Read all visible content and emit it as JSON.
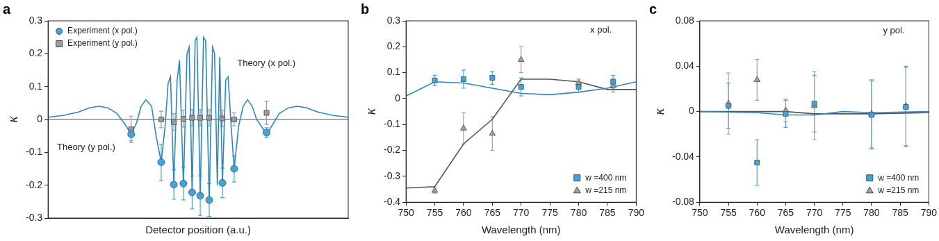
{
  "chart_data": [
    {
      "type": "scatter",
      "title": "a",
      "x_label": "Detector position (a.u.)",
      "y_label": "κ",
      "xlim": [
        0,
        100
      ],
      "ylim": [
        -0.3,
        0.3
      ],
      "yticks": [
        -0.3,
        -0.2,
        -0.1,
        0,
        0.1,
        0.2,
        0.3
      ],
      "tick_labels": "y",
      "grid": false,
      "legend": "upper left",
      "annotations": [
        {
          "text": "Theory (x pol.)",
          "x": 63,
          "y": 0.17
        },
        {
          "text": "Theory (y pol.)",
          "x": 3,
          "y": -0.085
        }
      ],
      "series": [
        {
          "type": "line",
          "line_style": "solid",
          "color": "#2b87c8",
          "x": [
            0,
            5,
            10,
            14,
            17,
            20,
            23,
            26,
            27.7,
            29.5,
            31,
            32.6,
            34.5,
            36,
            37.7,
            39,
            40,
            40.8,
            41.9,
            43,
            43.8,
            45.1,
            46.3,
            47,
            48,
            49,
            49.6,
            50.7,
            51.8,
            52.5,
            53.7,
            54.8,
            55.5,
            56.4,
            57.2,
            58.1,
            59.2,
            60,
            61,
            62,
            63.5,
            65,
            66.5,
            68,
            69.5,
            71,
            72.8,
            74.5,
            77,
            80,
            83,
            86,
            90,
            95,
            100
          ],
          "values": [
            0.007,
            0.012,
            0.022,
            0.036,
            0.04,
            0.035,
            0.018,
            -0.02,
            -0.045,
            -0.01,
            0.04,
            0.06,
            0.04,
            -0.05,
            -0.13,
            -0.02,
            0.11,
            0.13,
            -0.2,
            0.12,
            0.18,
            -0.2,
            0.2,
            0.22,
            -0.22,
            0.24,
            0.25,
            -0.235,
            0.25,
            0.24,
            -0.25,
            0.22,
            0.2,
            -0.2,
            0.19,
            -0.19,
            0.12,
            0.13,
            -0.02,
            -0.15,
            -0.02,
            0.04,
            0.06,
            0.04,
            0,
            -0.02,
            -0.045,
            -0.02,
            0.018,
            0.035,
            0.04,
            0.036,
            0.022,
            0.012,
            0.007
          ]
        },
        {
          "type": "line",
          "line_style": "solid",
          "color": "#8a8a8a",
          "x": [
            0,
            100
          ],
          "values": [
            0,
            0
          ]
        },
        {
          "name": "Experiment (x pol.)",
          "type": "scatter",
          "marker": "circle",
          "color": "#3aa8df",
          "x": [
            27.7,
            37.7,
            41.9,
            45.1,
            48,
            50.7,
            53.7,
            58.1,
            62,
            72.8
          ],
          "values": [
            -0.045,
            -0.13,
            -0.198,
            -0.195,
            -0.222,
            -0.232,
            -0.245,
            -0.193,
            -0.15,
            -0.04
          ],
          "errors": [
            0.02,
            0.055,
            0.045,
            0.05,
            0.05,
            0.06,
            0.05,
            0.045,
            0.04,
            0.015
          ]
        },
        {
          "name": "Experiment (y pol.)",
          "type": "scatter",
          "marker": "square",
          "color": "#9a9a9a",
          "x": [
            27.7,
            37.7,
            41.9,
            45.1,
            48,
            50.7,
            53.7,
            58.1,
            62,
            72.8
          ],
          "values": [
            -0.03,
            0,
            -0.008,
            0.002,
            0.005,
            0.005,
            0.005,
            0.003,
            0,
            0.02
          ],
          "errors": [
            0.04,
            0.025,
            0.025,
            0.025,
            0.025,
            0.025,
            0.025,
            0.025,
            0.02,
            0.035
          ]
        }
      ]
    },
    {
      "type": "scatter",
      "title": "b",
      "x_label": "Wavelength (nm)",
      "y_label": "κ",
      "xlim": [
        750,
        790
      ],
      "xticks": [
        750,
        755,
        760,
        765,
        770,
        775,
        780,
        785,
        790
      ],
      "ylim": [
        -0.4,
        0.3
      ],
      "yticks": [
        -0.4,
        -0.3,
        -0.2,
        -0.1,
        0,
        0.1,
        0.2,
        0.3
      ],
      "grid": false,
      "legend": "lower right",
      "annotations": [
        {
          "text": "x pol.",
          "x": 782,
          "y": 0.265
        }
      ],
      "series": [
        {
          "type": "line",
          "line_style": "solid",
          "color": "#2b87c8",
          "x": [
            750,
            755,
            760,
            765,
            770,
            775,
            780,
            785,
            790
          ],
          "values": [
            0.01,
            0.065,
            0.06,
            0.04,
            0.02,
            0.015,
            0.025,
            0.04,
            0.065
          ]
        },
        {
          "type": "line",
          "line_style": "solid",
          "color": "#555555",
          "x": [
            750,
            755,
            760,
            765,
            770,
            775,
            780,
            785,
            790
          ],
          "values": [
            -0.345,
            -0.34,
            -0.175,
            -0.08,
            0.075,
            0.075,
            0.065,
            0.035,
            0.035
          ]
        },
        {
          "name": "w =400 nm",
          "type": "scatter",
          "marker": "square",
          "color": "#3aa8df",
          "x": [
            755,
            760,
            765,
            770,
            780,
            786
          ],
          "values": [
            0.07,
            0.075,
            0.08,
            0.045,
            0.045,
            0.065
          ],
          "errors": [
            0.02,
            0.035,
            0.025,
            0.035,
            0.02,
            0.025
          ]
        },
        {
          "name": "w =215 nm",
          "type": "scatter",
          "marker": "triangle",
          "color": "#a0a0a0",
          "x": [
            755,
            760,
            765,
            770,
            780,
            786
          ],
          "values": [
            -0.355,
            -0.115,
            -0.135,
            0.15,
            0.06,
            0.05
          ],
          "errors": [
            0.01,
            0.06,
            0.065,
            0.05,
            0.015,
            0.025
          ]
        }
      ]
    },
    {
      "type": "scatter",
      "title": "c",
      "x_label": "Wavelength (nm)",
      "y_label": "κ",
      "xlim": [
        750,
        790
      ],
      "xticks": [
        750,
        755,
        760,
        765,
        770,
        775,
        780,
        785,
        790
      ],
      "ylim": [
        -0.08,
        0.08
      ],
      "yticks": [
        -0.08,
        -0.04,
        0,
        0.04,
        0.08
      ],
      "grid": false,
      "legend": "lower right",
      "annotations": [
        {
          "text": "y pol.",
          "x": 782,
          "y": 0.071
        }
      ],
      "series": [
        {
          "type": "line",
          "line_style": "solid",
          "color": "#2b87c8",
          "x": [
            750,
            760,
            765,
            770,
            775,
            780,
            790
          ],
          "values": [
            0,
            -0.001,
            -0.003,
            -0.003,
            0,
            -0.001,
            0
          ]
        },
        {
          "type": "line",
          "line_style": "solid",
          "color": "#555555",
          "x": [
            750,
            760,
            765,
            770,
            780,
            790
          ],
          "values": [
            0,
            0,
            0,
            -0.002,
            -0.002,
            -0.001
          ]
        },
        {
          "name": "w =400 nm",
          "type": "scatter",
          "marker": "square",
          "color": "#3aa8df",
          "x": [
            755,
            760,
            765,
            770,
            780,
            786
          ],
          "values": [
            0.005,
            -0.045,
            -0.002,
            0.007,
            -0.003,
            0.004
          ],
          "errors": [
            0.02,
            0.02,
            0.012,
            0.025,
            0.03,
            0.035
          ]
        },
        {
          "name": "w =215 nm",
          "type": "scatter",
          "marker": "triangle",
          "color": "#a0a0a0",
          "x": [
            755,
            760,
            765,
            770,
            780,
            786
          ],
          "values": [
            0.007,
            0.028,
            0.001,
            0.005,
            -0.002,
            0.005
          ],
          "errors": [
            0.027,
            0.018,
            0.01,
            0.03,
            0.03,
            0.035
          ]
        }
      ]
    }
  ]
}
